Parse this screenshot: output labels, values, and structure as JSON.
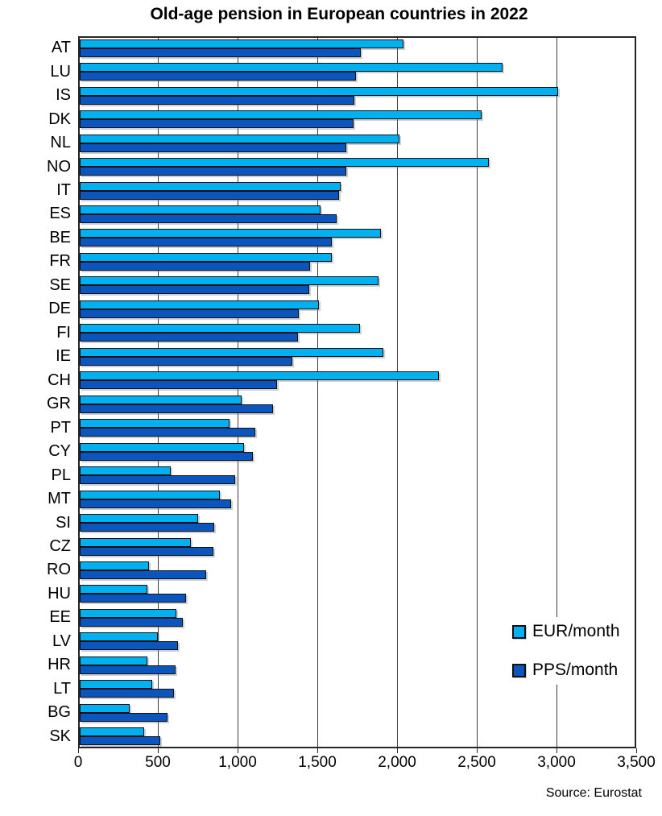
{
  "chart_data": {
    "type": "bar",
    "orientation": "horizontal",
    "title": "Old-age pension in European countries in 2022",
    "source_note": "Source: Eurostat",
    "xlim": [
      0,
      3500
    ],
    "xticks": [
      0,
      500,
      1000,
      1500,
      2000,
      2500,
      3000,
      3500
    ],
    "xtick_labels": [
      "0",
      "500",
      "1,000",
      "1,500",
      "2,000",
      "2,500",
      "3,000",
      "3,500"
    ],
    "grid": "vertical-only",
    "legend_position": "inside-right-lower",
    "categories": [
      "AT",
      "LU",
      "IS",
      "DK",
      "NL",
      "NO",
      "IT",
      "ES",
      "BE",
      "FR",
      "SE",
      "DE",
      "FI",
      "IE",
      "CH",
      "GR",
      "PT",
      "CY",
      "PL",
      "MT",
      "SI",
      "CZ",
      "RO",
      "HU",
      "EE",
      "LV",
      "HR",
      "LT",
      "BG",
      "SK"
    ],
    "series": [
      {
        "name": "EUR/month",
        "color": "#00B0F0",
        "values": [
          2030,
          2650,
          3000,
          2520,
          2005,
          2565,
          1635,
          1510,
          1890,
          1580,
          1875,
          1500,
          1760,
          1905,
          2250,
          1015,
          940,
          1030,
          570,
          880,
          740,
          695,
          435,
          425,
          605,
          490,
          425,
          455,
          315,
          405
        ]
      },
      {
        "name": "PPS/month",
        "color": "#0B55BE",
        "values": [
          1765,
          1730,
          1720,
          1715,
          1670,
          1670,
          1625,
          1610,
          1580,
          1445,
          1440,
          1375,
          1370,
          1335,
          1235,
          1210,
          1100,
          1085,
          975,
          950,
          845,
          840,
          795,
          665,
          645,
          615,
          600,
          590,
          550,
          505
        ]
      }
    ]
  }
}
